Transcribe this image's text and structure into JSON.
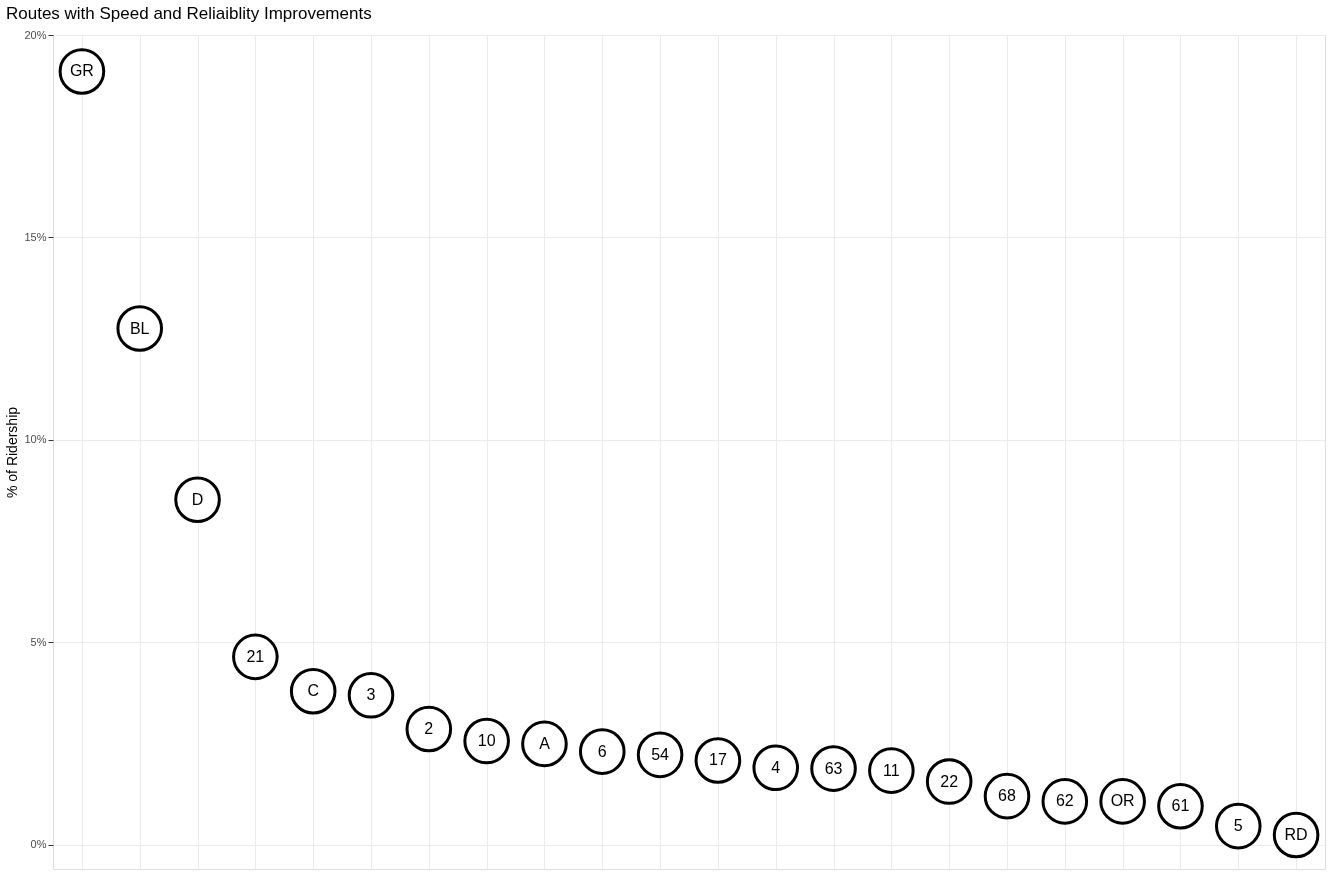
{
  "chart_data": {
    "type": "scatter",
    "title": "Routes with Speed and Reliaiblity Improvements",
    "ylabel": "% of Ridership",
    "categories": [
      null,
      null,
      null,
      null,
      null,
      null,
      null,
      null,
      null,
      null,
      null,
      null,
      null,
      null,
      null,
      null,
      null,
      null,
      null,
      null,
      null,
      null
    ],
    "values": [
      19.1,
      12.75,
      8.52,
      4.64,
      3.79,
      3.69,
      2.86,
      2.56,
      2.49,
      2.3,
      2.22,
      2.08,
      1.9,
      1.88,
      1.83,
      1.56,
      1.2,
      1.07,
      1.07,
      0.95,
      0.46,
      0.24
    ],
    "color": "#000000",
    "marker": "circle",
    "annotations": [
      {
        "text": "GR",
        "y": 19.1
      },
      {
        "text": "BL",
        "y": 12.75
      },
      {
        "text": "D",
        "y": 8.52
      },
      {
        "text": "21",
        "y": 4.64
      },
      {
        "text": "C",
        "y": 3.79
      },
      {
        "text": "3",
        "y": 3.69
      },
      {
        "text": "2",
        "y": 2.86
      },
      {
        "text": "10",
        "y": 2.56
      },
      {
        "text": "A",
        "y": 2.49
      },
      {
        "text": "6",
        "y": 2.3
      },
      {
        "text": "54",
        "y": 2.22
      },
      {
        "text": "17",
        "y": 2.08
      },
      {
        "text": "4",
        "y": 1.9
      },
      {
        "text": "63",
        "y": 1.88
      },
      {
        "text": "11",
        "y": 1.83
      },
      {
        "text": "22",
        "y": 1.56
      },
      {
        "text": "68",
        "y": 1.2
      },
      {
        "text": "62",
        "y": 1.07
      },
      {
        "text": "OR",
        "y": 1.07
      },
      {
        "text": "61",
        "y": 0.95
      },
      {
        "text": "5",
        "y": 0.46
      },
      {
        "text": "RD",
        "y": 0.24
      }
    ],
    "ylim": [
      -0.6,
      20
    ],
    "yticks": [
      {
        "value": 0,
        "label": "0%"
      },
      {
        "value": 5,
        "label": "5%"
      },
      {
        "value": 10,
        "label": "10%"
      },
      {
        "value": 15,
        "label": "15%"
      },
      {
        "value": 20,
        "label": "20%"
      }
    ],
    "tick_labels": "y",
    "grid": true
  }
}
